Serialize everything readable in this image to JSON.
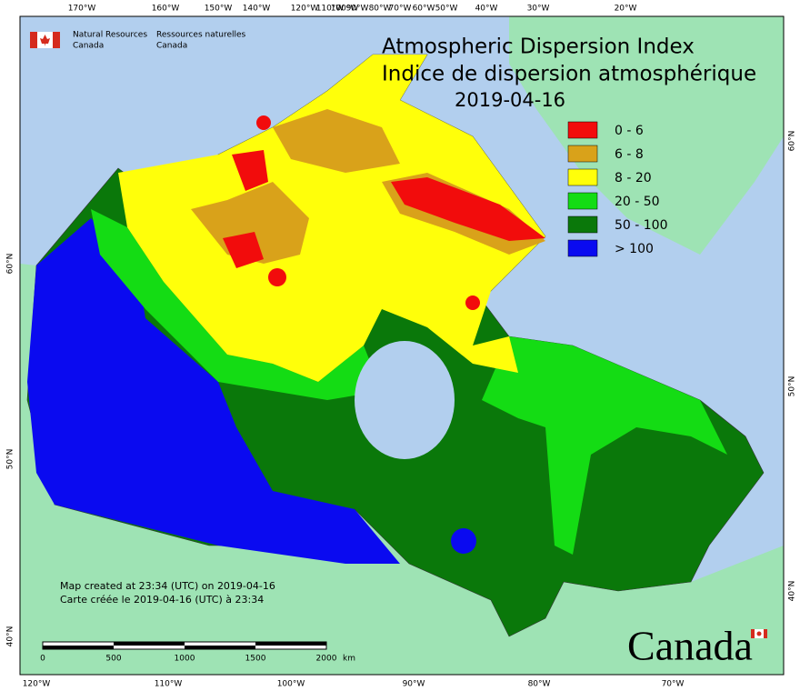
{
  "header": {
    "logo_en": [
      "Natural Resources",
      "Canada"
    ],
    "logo_fr": [
      "Ressources naturelles",
      "Canada"
    ]
  },
  "title": {
    "en": "Atmospheric Dispersion Index",
    "fr": "Indice de dispersion atmosphérique",
    "date": "2019-04-16"
  },
  "legend": [
    {
      "label": "0 - 6",
      "color": "#f20c0c"
    },
    {
      "label": "6 - 8",
      "color": "#d9a21a"
    },
    {
      "label": "8 - 20",
      "color": "#ffff0a"
    },
    {
      "label": "20 - 50",
      "color": "#14dc14"
    },
    {
      "label": "50 - 100",
      "color": "#0a780a"
    },
    {
      "label": "> 100",
      "color": "#0a0af0"
    }
  ],
  "graticule": {
    "top": [
      "170°W",
      "160°W",
      "150°W",
      "140°W",
      "120°W",
      "110°W",
      "100°W",
      "90°W",
      "80°W",
      "70°W",
      "60°W",
      "50°W",
      "40°W",
      "30°W",
      "20°W"
    ],
    "bottom": [
      "120°W",
      "110°W",
      "100°W",
      "90°W",
      "80°W",
      "70°W"
    ],
    "left": [
      "60°N",
      "50°N",
      "40°N"
    ],
    "right": [
      "60°N",
      "50°N",
      "40°N"
    ]
  },
  "credits": [
    "Map created at 23:34 (UTC) on 2019-04-16",
    "Carte créée le 2019-04-16 (UTC) à 23:34"
  ],
  "scale_bar": {
    "ticks": [
      0,
      500,
      1000,
      1500,
      2000
    ],
    "unit": "km"
  },
  "wordmark": "Canada"
}
